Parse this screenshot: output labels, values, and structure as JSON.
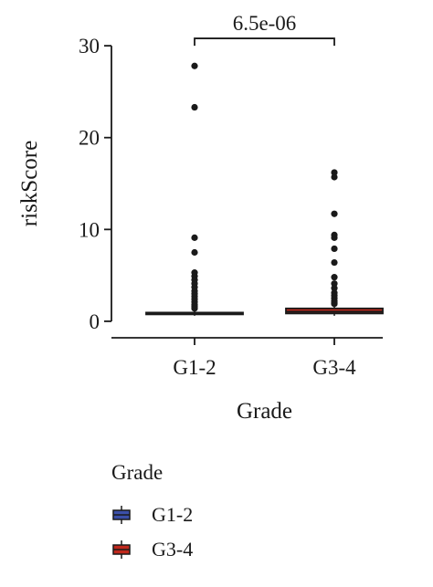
{
  "chart_data": {
    "type": "box",
    "xlabel": "Grade",
    "ylabel": "riskScore",
    "categories": [
      "G1-2",
      "G3-4"
    ],
    "yticks": [
      0,
      10,
      20,
      30
    ],
    "ylim": [
      -1,
      32
    ],
    "significance": {
      "label": "6.5e-06",
      "between": [
        "G1-2",
        "G3-4"
      ]
    },
    "series": [
      {
        "name": "G1-2",
        "color": "#3b4fa8",
        "q1": 0.75,
        "median": 0.85,
        "q3": 0.95,
        "whisker_low": 0.6,
        "whisker_high": 1.2,
        "outliers": [
          27.8,
          23.3,
          9.1,
          7.5,
          5.3,
          4.9,
          4.5,
          4.1,
          3.7,
          3.3,
          3.0,
          2.7,
          2.4,
          2.1,
          1.8,
          1.6,
          1.4
        ]
      },
      {
        "name": "G3-4",
        "color": "#c0281c",
        "q1": 0.85,
        "median": 1.05,
        "q3": 1.4,
        "whisker_low": 0.6,
        "whisker_high": 1.7,
        "outliers": [
          16.2,
          15.7,
          11.7,
          9.4,
          9.1,
          7.9,
          6.4,
          4.8,
          4.1,
          3.6,
          3.1,
          2.8,
          2.5,
          2.2,
          2.0,
          1.9
        ]
      }
    ],
    "legend": {
      "title": "Grade",
      "position": "bottom-left",
      "items": [
        "G1-2",
        "G3-4"
      ]
    }
  }
}
